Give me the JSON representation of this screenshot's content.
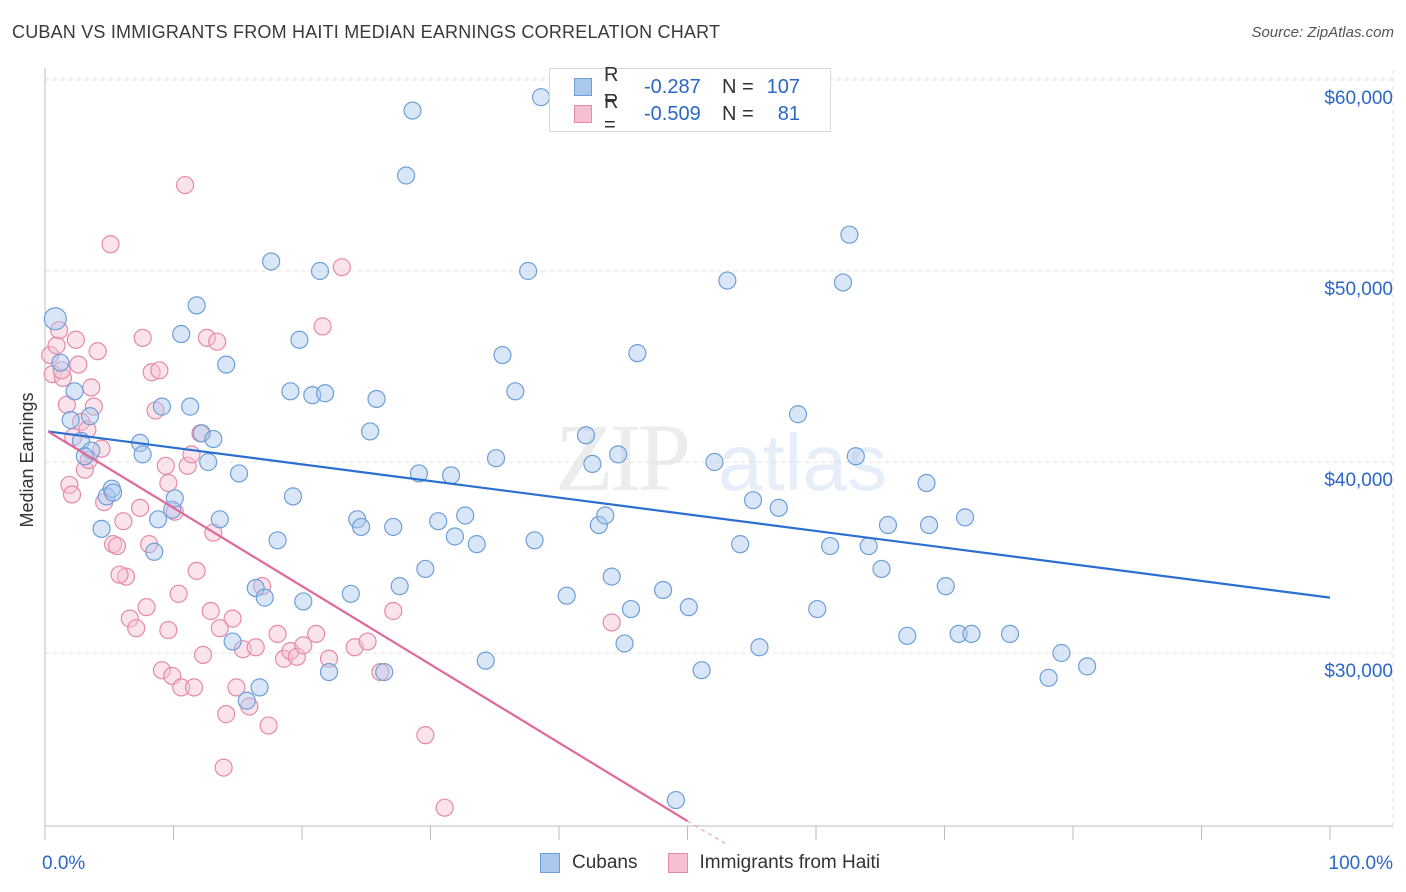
{
  "title": "CUBAN VS IMMIGRANTS FROM HAITI MEDIAN EARNINGS CORRELATION CHART",
  "source": "Source: ZipAtlas.com",
  "watermark": {
    "zip": "ZIP",
    "atlas": "atlas"
  },
  "colors": {
    "blue_fill": "#aac8ee",
    "blue_stroke": "#6e9fd8",
    "blue_line": "#2b6fd0",
    "pink_fill": "#f4c0d2",
    "pink_stroke": "#e68aaa",
    "pink_line": "#e0699a",
    "value_text": "#2b67c6"
  },
  "legend": {
    "rows": [
      {
        "series": "Cubans",
        "r_label": "R =",
        "r_value": "-0.287",
        "n_label": "N =",
        "n_value": "107"
      },
      {
        "series": "Immigrants from Haiti",
        "r_label": "R =",
        "r_value": "-0.509",
        "n_label": "N =",
        "n_value": "81"
      }
    ]
  },
  "bottom_legend": {
    "items": [
      "Cubans",
      "Immigrants from Haiti"
    ]
  },
  "chart_data": {
    "type": "scatter",
    "title": "CUBAN VS IMMIGRANTS FROM HAITI MEDIAN EARNINGS CORRELATION CHART",
    "xlabel": "",
    "ylabel": "Median Earnings",
    "xlim": [
      0,
      100
    ],
    "ylim": [
      21000,
      62000
    ],
    "x_tick_labels": [
      "0.0%",
      "100.0%"
    ],
    "y_ticks": [
      30000,
      40000,
      50000,
      60000
    ],
    "y_tick_labels": [
      "$30,000",
      "$40,000",
      "$50,000",
      "$60,000"
    ],
    "grid": true,
    "legend_position": "top-center",
    "series": [
      {
        "name": "Cubans",
        "trend": {
          "x": [
            0,
            100
          ],
          "y": [
            41600,
            32900
          ]
        },
        "points": [
          [
            0.8,
            47500
          ],
          [
            1.2,
            45200
          ],
          [
            2.0,
            42200
          ],
          [
            2.3,
            43700
          ],
          [
            2.8,
            41100
          ],
          [
            3.5,
            42400
          ],
          [
            3.6,
            40600
          ],
          [
            3.1,
            40300
          ],
          [
            4.4,
            36500
          ],
          [
            4.8,
            38200
          ],
          [
            5.2,
            38600
          ],
          [
            5.3,
            38400
          ],
          [
            7.4,
            41000
          ],
          [
            7.6,
            40400
          ],
          [
            8.5,
            35300
          ],
          [
            8.8,
            37000
          ],
          [
            9.1,
            42900
          ],
          [
            9.9,
            37500
          ],
          [
            10.1,
            38100
          ],
          [
            10.6,
            46700
          ],
          [
            11.3,
            42900
          ],
          [
            11.8,
            48200
          ],
          [
            12.2,
            41500
          ],
          [
            12.7,
            40000
          ],
          [
            13.1,
            41200
          ],
          [
            13.6,
            37000
          ],
          [
            14.1,
            45100
          ],
          [
            14.6,
            30600
          ],
          [
            15.1,
            39400
          ],
          [
            15.7,
            27500
          ],
          [
            16.4,
            33400
          ],
          [
            16.7,
            28200
          ],
          [
            17.1,
            32900
          ],
          [
            17.6,
            50500
          ],
          [
            18.1,
            35900
          ],
          [
            19.1,
            43700
          ],
          [
            19.3,
            38200
          ],
          [
            19.8,
            46400
          ],
          [
            20.1,
            32700
          ],
          [
            20.8,
            43500
          ],
          [
            21.4,
            50000
          ],
          [
            21.8,
            43600
          ],
          [
            22.1,
            29000
          ],
          [
            23.8,
            33100
          ],
          [
            24.3,
            37000
          ],
          [
            24.6,
            36600
          ],
          [
            25.3,
            41600
          ],
          [
            25.8,
            43300
          ],
          [
            26.4,
            29000
          ],
          [
            27.1,
            36600
          ],
          [
            27.6,
            33500
          ],
          [
            28.1,
            55000
          ],
          [
            28.6,
            58400
          ],
          [
            29.1,
            39400
          ],
          [
            29.6,
            34400
          ],
          [
            30.6,
            36900
          ],
          [
            31.6,
            39300
          ],
          [
            31.9,
            36100
          ],
          [
            32.7,
            37200
          ],
          [
            33.6,
            35700
          ],
          [
            34.3,
            29600
          ],
          [
            35.1,
            40200
          ],
          [
            35.6,
            45600
          ],
          [
            36.6,
            43700
          ],
          [
            37.6,
            50000
          ],
          [
            38.1,
            35900
          ],
          [
            38.6,
            59100
          ],
          [
            40.6,
            33000
          ],
          [
            42.1,
            41400
          ],
          [
            42.6,
            39900
          ],
          [
            43.1,
            36700
          ],
          [
            43.6,
            37200
          ],
          [
            44.1,
            34000
          ],
          [
            44.6,
            40400
          ],
          [
            45.1,
            30500
          ],
          [
            45.6,
            32300
          ],
          [
            46.1,
            45700
          ],
          [
            48.1,
            33300
          ],
          [
            49.1,
            22300
          ],
          [
            50.1,
            32400
          ],
          [
            51.1,
            29100
          ],
          [
            52.1,
            40000
          ],
          [
            53.1,
            49500
          ],
          [
            54.1,
            35700
          ],
          [
            55.1,
            38000
          ],
          [
            55.6,
            30300
          ],
          [
            57.1,
            37600
          ],
          [
            58.6,
            42500
          ],
          [
            60.1,
            32300
          ],
          [
            61.1,
            35600
          ],
          [
            62.1,
            49400
          ],
          [
            62.6,
            51900
          ],
          [
            63.1,
            40300
          ],
          [
            64.1,
            35600
          ],
          [
            65.1,
            34400
          ],
          [
            65.6,
            36700
          ],
          [
            67.1,
            30900
          ],
          [
            68.6,
            38900
          ],
          [
            68.8,
            36700
          ],
          [
            70.1,
            33500
          ],
          [
            71.1,
            31000
          ],
          [
            71.6,
            37100
          ],
          [
            72.1,
            31000
          ],
          [
            75.1,
            31000
          ],
          [
            78.1,
            28700
          ],
          [
            79.1,
            30000
          ],
          [
            81.1,
            29300
          ]
        ]
      },
      {
        "name": "Immigrants from Haiti",
        "trend": {
          "x": [
            0,
            50
          ],
          "y": [
            41600,
            21200
          ]
        },
        "trend_dashed": {
          "x": [
            50,
            53
          ],
          "y": [
            21200,
            20000
          ]
        },
        "points": [
          [
            0.4,
            45600
          ],
          [
            0.6,
            44600
          ],
          [
            0.9,
            46100
          ],
          [
            1.1,
            46900
          ],
          [
            1.4,
            44400
          ],
          [
            1.7,
            43000
          ],
          [
            1.9,
            38800
          ],
          [
            2.1,
            38300
          ],
          [
            2.4,
            46400
          ],
          [
            2.6,
            45100
          ],
          [
            2.8,
            42100
          ],
          [
            3.1,
            39600
          ],
          [
            3.3,
            41700
          ],
          [
            3.6,
            43900
          ],
          [
            3.8,
            42900
          ],
          [
            4.1,
            45800
          ],
          [
            4.4,
            40700
          ],
          [
            4.6,
            37900
          ],
          [
            5.1,
            51400
          ],
          [
            5.3,
            35700
          ],
          [
            5.6,
            35600
          ],
          [
            6.1,
            36900
          ],
          [
            6.3,
            34000
          ],
          [
            6.6,
            31800
          ],
          [
            7.1,
            31300
          ],
          [
            7.4,
            37600
          ],
          [
            7.6,
            46500
          ],
          [
            8.1,
            35700
          ],
          [
            8.3,
            44700
          ],
          [
            8.6,
            42700
          ],
          [
            8.9,
            44800
          ],
          [
            9.1,
            29100
          ],
          [
            9.4,
            39800
          ],
          [
            9.6,
            38900
          ],
          [
            9.9,
            28800
          ],
          [
            10.1,
            37400
          ],
          [
            10.4,
            33100
          ],
          [
            10.6,
            28200
          ],
          [
            10.9,
            54500
          ],
          [
            11.1,
            39800
          ],
          [
            11.4,
            40400
          ],
          [
            11.6,
            28200
          ],
          [
            12.1,
            41500
          ],
          [
            12.3,
            29900
          ],
          [
            12.6,
            46500
          ],
          [
            12.9,
            32200
          ],
          [
            13.1,
            36300
          ],
          [
            13.4,
            46300
          ],
          [
            13.9,
            24000
          ],
          [
            14.1,
            26800
          ],
          [
            14.6,
            31800
          ],
          [
            14.9,
            28200
          ],
          [
            15.4,
            30200
          ],
          [
            15.9,
            27200
          ],
          [
            16.4,
            30300
          ],
          [
            16.9,
            33500
          ],
          [
            17.4,
            26200
          ],
          [
            18.1,
            31000
          ],
          [
            18.6,
            29700
          ],
          [
            19.1,
            30100
          ],
          [
            19.6,
            29800
          ],
          [
            20.1,
            30400
          ],
          [
            21.1,
            31000
          ],
          [
            21.6,
            47100
          ],
          [
            22.1,
            29700
          ],
          [
            23.1,
            50200
          ],
          [
            24.1,
            30300
          ],
          [
            25.1,
            30600
          ],
          [
            26.1,
            29000
          ],
          [
            27.1,
            32200
          ],
          [
            29.6,
            25700
          ],
          [
            31.1,
            21900
          ],
          [
            44.1,
            31600
          ],
          [
            1.3,
            44800
          ],
          [
            2.2,
            41300
          ],
          [
            3.4,
            40100
          ],
          [
            5.8,
            34100
          ],
          [
            7.9,
            32400
          ],
          [
            9.6,
            31200
          ],
          [
            11.8,
            34300
          ],
          [
            13.6,
            31300
          ]
        ]
      }
    ]
  }
}
